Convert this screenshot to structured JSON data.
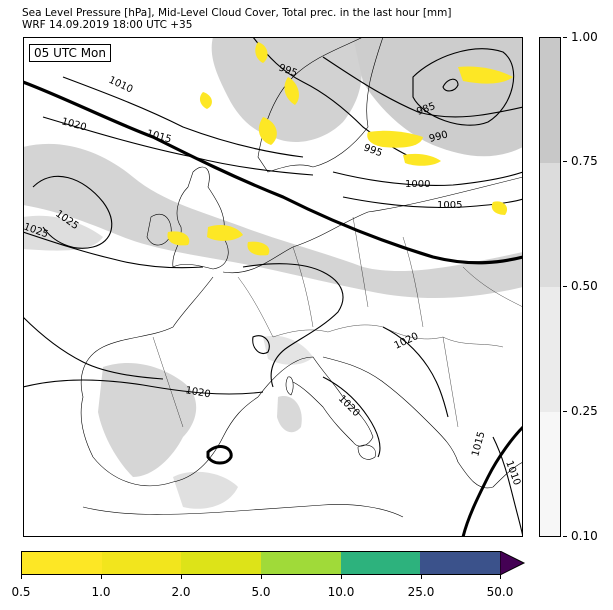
{
  "header": {
    "title_line1": "Sea Level Pressure [hPa], Mid-Level Cloud Cover, Total prec. in the last hour [mm]",
    "title_line2": "WRF 14.09.2019 18:00 UTC +35"
  },
  "map": {
    "valid_time": "05 UTC Mon",
    "isobar_labels": [
      "1010",
      "995",
      "1020",
      "1015",
      "985",
      "990",
      "995",
      "1000",
      "1005",
      "1025",
      "1025",
      "1020",
      "1020",
      "1020",
      "1015",
      "1010"
    ]
  },
  "cloud_colorbar": {
    "labels": [
      "1.00",
      "0.75",
      "0.50",
      "0.25",
      "0.10"
    ],
    "colors": [
      "#c8c8c8",
      "#dcdcdc",
      "#ebebeb",
      "#f7f7f7"
    ]
  },
  "precip_colorbar": {
    "labels": [
      "0.5",
      "1.0",
      "2.0",
      "5.0",
      "10.0",
      "25.0",
      "50.0"
    ],
    "colors": [
      "#fde725",
      "#f2e51d",
      "#dde318",
      "#a0da39",
      "#2db27d",
      "#3b528b",
      "#440154"
    ]
  }
}
